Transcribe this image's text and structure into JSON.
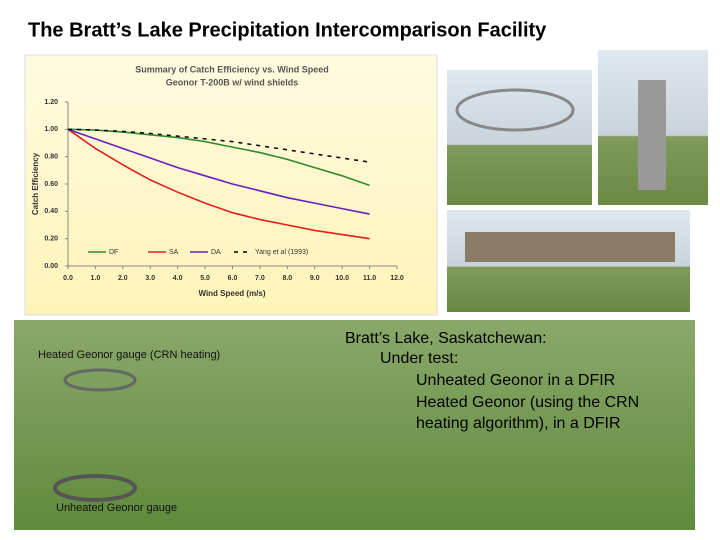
{
  "slide_title": "The Bratt’s Lake Precipitation Intercomparison Facility",
  "chart_data": {
    "type": "line",
    "title": "Summary of Catch Efficiency vs. Wind Speed",
    "subtitle": "Geonor T-200B w/ wind shields",
    "x_label": "Wind Speed (m/s)",
    "y_label": "Catch Efficiency",
    "x": [
      0,
      1,
      2,
      3,
      4,
      5,
      6,
      7,
      8,
      9,
      10,
      11
    ],
    "series": [
      {
        "name": "DF",
        "color": "#2e8b2e",
        "values": [
          1.0,
          0.995,
          0.98,
          0.96,
          0.94,
          0.91,
          0.87,
          0.83,
          0.78,
          0.72,
          0.66,
          0.59
        ]
      },
      {
        "name": "SA",
        "color": "#e02020",
        "values": [
          1.0,
          0.86,
          0.74,
          0.63,
          0.54,
          0.46,
          0.39,
          0.34,
          0.3,
          0.26,
          0.23,
          0.2
        ]
      },
      {
        "name": "DA",
        "color": "#6a1fc0",
        "values": [
          1.0,
          0.93,
          0.86,
          0.79,
          0.72,
          0.66,
          0.6,
          0.55,
          0.5,
          0.46,
          0.42,
          0.38
        ]
      },
      {
        "name": "Yang et al (1993)",
        "color": "#000000",
        "dashed": true,
        "values": [
          1.0,
          0.995,
          0.985,
          0.97,
          0.95,
          0.93,
          0.91,
          0.88,
          0.85,
          0.82,
          0.79,
          0.76
        ]
      }
    ],
    "xlim": [
      0,
      12
    ],
    "xticks": [
      {
        "value": 0,
        "label": "0.0"
      },
      {
        "value": 1,
        "label": "1.0"
      },
      {
        "value": 2,
        "label": "2.0"
      },
      {
        "value": 3,
        "label": "3.0"
      },
      {
        "value": 4,
        "label": "4.0"
      },
      {
        "value": 5,
        "label": "5.0"
      },
      {
        "value": 6,
        "label": "6.0"
      },
      {
        "value": 7,
        "label": "7.0"
      },
      {
        "value": 8,
        "label": "8.0"
      },
      {
        "value": 9,
        "label": "9.0"
      },
      {
        "value": 10,
        "label": "10.0"
      },
      {
        "value": 11,
        "label": "11.0"
      },
      {
        "value": 12,
        "label": "12.0"
      }
    ],
    "ylim": [
      0,
      1.2
    ],
    "yticks": [
      {
        "value": 0,
        "label": "0.00"
      },
      {
        "value": 0.2,
        "label": "0.20"
      },
      {
        "value": 0.4,
        "label": "0.40"
      },
      {
        "value": 0.6,
        "label": "0.60"
      },
      {
        "value": 0.8,
        "label": "0.80"
      },
      {
        "value": 1.0,
        "label": "1.00"
      },
      {
        "value": 1.2,
        "label": "1.20"
      }
    ],
    "legend": "bottom"
  },
  "photo_captions": [
    "Heated Geonor gauge (CRN heating)",
    "Unheated Geonor gauge"
  ],
  "description": [
    "Bratt’s Lake, Saskatchewan:",
    "Under test:",
    "Unheated Geonor in a DFIR",
    "Heated Geonor (using the CRN",
    "heating algorithm), in a DFIR"
  ]
}
